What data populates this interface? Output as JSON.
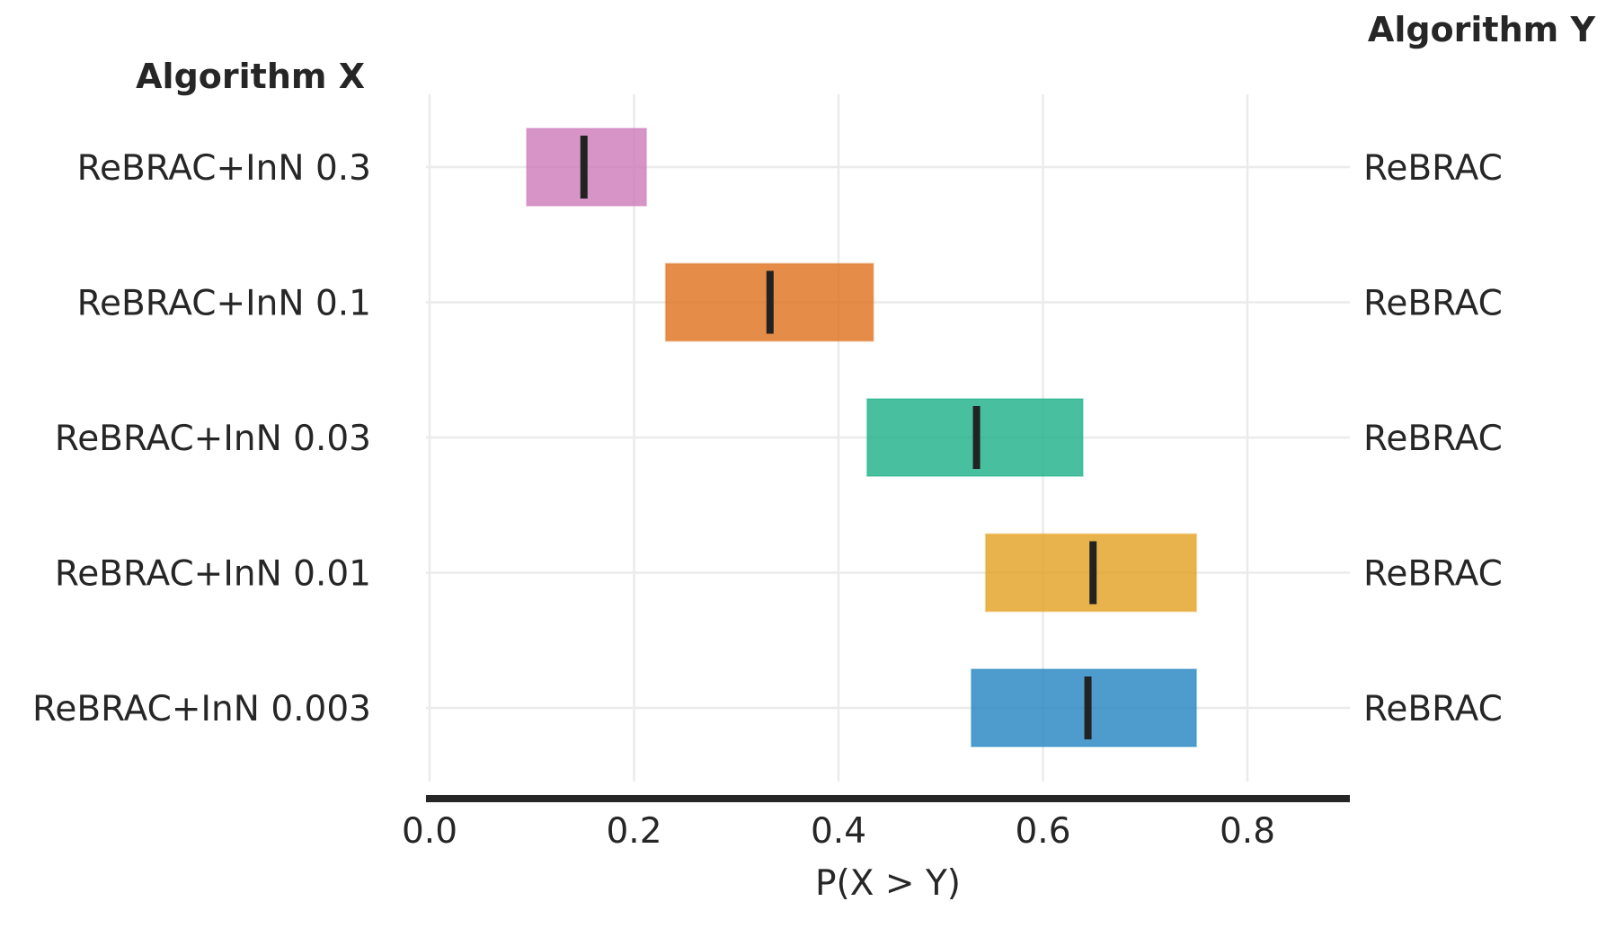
{
  "chart_data": {
    "type": "interval",
    "left_header": "Algorithm X",
    "right_header": "Algorithm Y",
    "xlabel": "P(X > Y)",
    "xlim": [
      0.0,
      0.9
    ],
    "xticks": [
      0.0,
      0.2,
      0.4,
      0.6,
      0.8
    ],
    "xtick_labels": [
      "0.0",
      "0.2",
      "0.4",
      "0.6",
      "0.8"
    ],
    "grid": true,
    "rows": [
      {
        "algorithm_x": "ReBRAC+InN 0.3",
        "algorithm_y": "ReBRAC",
        "low": 0.095,
        "high": 0.212,
        "point": 0.151,
        "color": "#cc79b9"
      },
      {
        "algorithm_x": "ReBRAC+InN 0.1",
        "algorithm_y": "ReBRAC",
        "low": 0.231,
        "high": 0.434,
        "point": 0.333,
        "color": "#de6f1a"
      },
      {
        "algorithm_x": "ReBRAC+InN 0.03",
        "algorithm_y": "ReBRAC",
        "low": 0.428,
        "high": 0.639,
        "point": 0.535,
        "color": "#1aaf86"
      },
      {
        "algorithm_x": "ReBRAC+InN 0.01",
        "algorithm_y": "ReBRAC",
        "low": 0.544,
        "high": 0.75,
        "point": 0.649,
        "color": "#e2a01f"
      },
      {
        "algorithm_x": "ReBRAC+InN 0.003",
        "algorithm_y": "ReBRAC",
        "low": 0.53,
        "high": 0.75,
        "point": 0.644,
        "color": "#2283c0"
      }
    ]
  }
}
